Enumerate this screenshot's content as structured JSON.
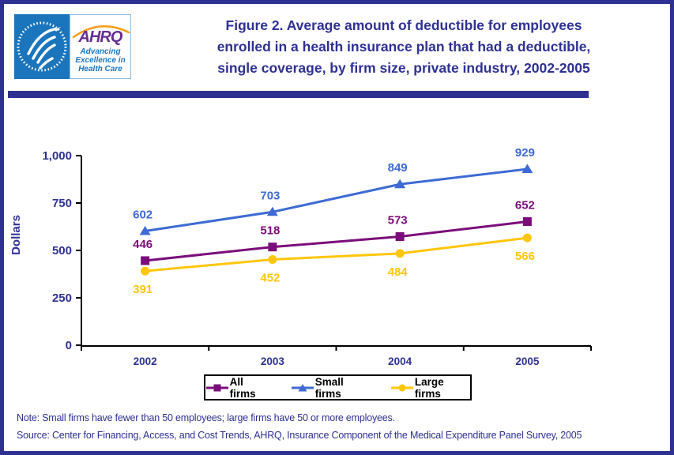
{
  "header": {
    "logo": {
      "ahrq_acronym": "AHRQ",
      "tagline_lines": [
        "Advancing",
        "Excellence in",
        "Health Care"
      ]
    },
    "title_lines": [
      "Figure 2. Average amount of deductible for employees",
      "enrolled in a health insurance plan that had a deductible,",
      "single coverage, by firm size, private industry, 2002-2005"
    ]
  },
  "chart_data": {
    "type": "line",
    "title": "Figure 2. Average amount of deductible for employees enrolled in a health insurance plan that had a deductible, single coverage, by firm size, private industry, 2002-2005",
    "xlabel": "",
    "ylabel": "Dollars",
    "categories": [
      "2002",
      "2003",
      "2004",
      "2005"
    ],
    "series": [
      {
        "name": "All firms",
        "color": "#7B0D7B",
        "marker": "square",
        "label_position": "above",
        "values": [
          446,
          518,
          573,
          652
        ]
      },
      {
        "name": "Small firms",
        "color": "#3E6AD5",
        "marker": "triangle",
        "label_position": "above",
        "values": [
          602,
          703,
          849,
          929
        ]
      },
      {
        "name": "Large firms",
        "color": "#FFC60B",
        "marker": "circle",
        "label_position": "below",
        "values": [
          391,
          452,
          484,
          566
        ]
      }
    ],
    "ylim": [
      0,
      1000
    ],
    "yticks": [
      0,
      250,
      500,
      750,
      1000
    ],
    "grid": false,
    "legend_position": "bottom"
  },
  "notes": {
    "note": "Note: Small firms have fewer than 50 employees; large firms have 50 or more employees.",
    "source": "Source: Center for Financing, Access, and Cost Trends, AHRQ, Insurance Component of the Medical Expenditure Panel Survey, 2005"
  },
  "colors": {
    "navy": "#2E3192",
    "logo_blue": "#1B75BC",
    "ahrq_purple": "#662D91",
    "arc_orange": "#F7A01B",
    "axis_black": "#000000"
  }
}
